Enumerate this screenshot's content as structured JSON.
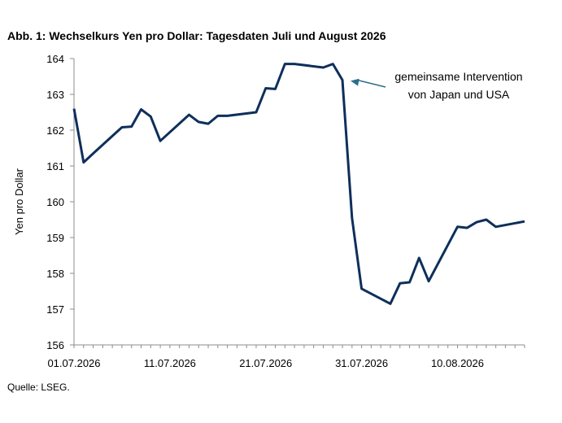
{
  "chart_data": {
    "type": "line",
    "title": "Abb. 1: Wechselkurs Yen pro Dollar: Tagesdaten Juli und August 2026",
    "xlabel": "",
    "ylabel": "Yen pro Dollar",
    "ylim": [
      156,
      164
    ],
    "yticks": [
      "156",
      "157",
      "158",
      "159",
      "160",
      "161",
      "162",
      "163",
      "164"
    ],
    "xlim": [
      "2026-07-01",
      "2026-08-17"
    ],
    "xticks": [
      {
        "date": "2026-07-01",
        "label": "01.07.2026"
      },
      {
        "date": "2026-07-11",
        "label": "11.07.2026"
      },
      {
        "date": "2026-07-21",
        "label": "21.07.2026"
      },
      {
        "date": "2026-07-31",
        "label": "31.07.2026"
      },
      {
        "date": "2026-08-10",
        "label": "10.08.2026"
      }
    ],
    "grid": false,
    "line_color": "#0e2f5b",
    "series": [
      {
        "name": "",
        "points": [
          [
            "2026-07-01",
            162.6
          ],
          [
            "2026-07-02",
            161.1
          ],
          [
            "2026-07-03",
            161.35
          ],
          [
            "2026-07-06",
            162.08
          ],
          [
            "2026-07-07",
            162.1
          ],
          [
            "2026-07-08",
            162.58
          ],
          [
            "2026-07-09",
            162.38
          ],
          [
            "2026-07-10",
            161.7
          ],
          [
            "2026-07-13",
            162.43
          ],
          [
            "2026-07-14",
            162.23
          ],
          [
            "2026-07-15",
            162.18
          ],
          [
            "2026-07-16",
            162.4
          ],
          [
            "2026-07-17",
            162.4
          ],
          [
            "2026-07-20",
            162.5
          ],
          [
            "2026-07-21",
            163.17
          ],
          [
            "2026-07-22",
            163.15
          ],
          [
            "2026-07-23",
            163.85
          ],
          [
            "2026-07-24",
            163.85
          ],
          [
            "2026-07-27",
            163.75
          ],
          [
            "2026-07-28",
            163.85
          ],
          [
            "2026-07-29",
            163.4
          ],
          [
            "2026-07-30",
            159.55
          ],
          [
            "2026-07-31",
            157.57
          ],
          [
            "2026-08-03",
            157.15
          ],
          [
            "2026-08-04",
            157.72
          ],
          [
            "2026-08-05",
            157.75
          ],
          [
            "2026-08-06",
            158.43
          ],
          [
            "2026-08-07",
            157.78
          ],
          [
            "2026-08-10",
            159.3
          ],
          [
            "2026-08-11",
            159.27
          ],
          [
            "2026-08-12",
            159.43
          ],
          [
            "2026-08-13",
            159.5
          ],
          [
            "2026-08-14",
            159.3
          ],
          [
            "2026-08-17",
            159.45
          ]
        ]
      }
    ],
    "annotations": [
      {
        "lines": [
          "gemeinsame Intervention",
          "von Japan und USA"
        ],
        "target": [
          "2026-07-29",
          163.4
        ]
      }
    ]
  },
  "source": "Quelle: LSEG."
}
